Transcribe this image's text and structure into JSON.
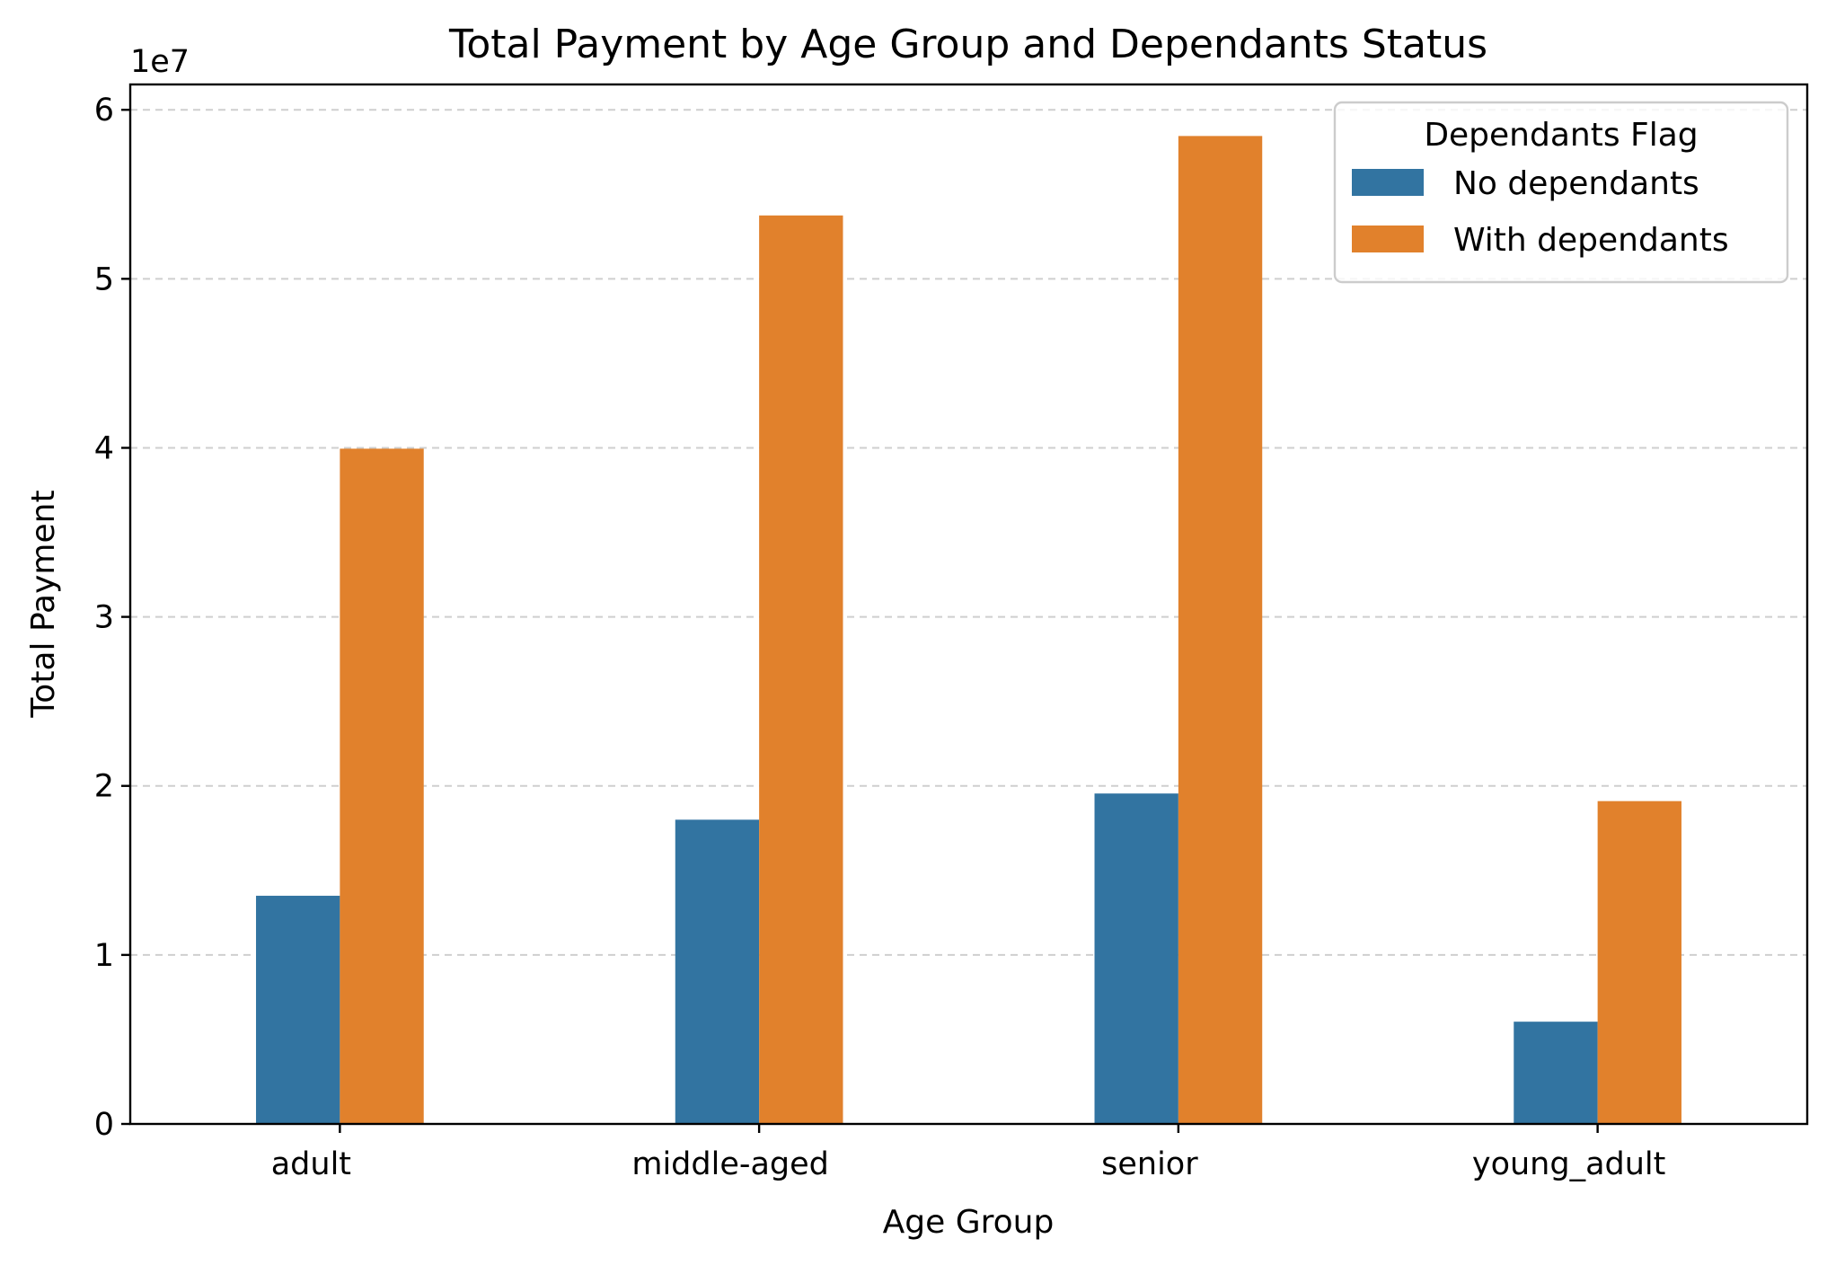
{
  "chart_data": {
    "type": "bar",
    "title": "Total Payment by Age Group and Dependants Status",
    "xlabel": "Age Group",
    "ylabel": "Total Payment",
    "offset_label": "1e7",
    "categories": [
      "adult",
      "middle-aged",
      "senior",
      "young_adult"
    ],
    "series": [
      {
        "name": "No dependants",
        "color": "#3274a1",
        "values": [
          13500000,
          18000000,
          19550000,
          6050000
        ]
      },
      {
        "name": "With dependants",
        "color": "#e1812c",
        "values": [
          39950000,
          53750000,
          58450000,
          19100000
        ]
      }
    ],
    "ylim": [
      0,
      61500000
    ],
    "yticks": [
      0,
      10000000,
      20000000,
      30000000,
      40000000,
      50000000,
      60000000
    ],
    "ytick_labels": [
      "0",
      "1",
      "2",
      "3",
      "4",
      "5",
      "6"
    ],
    "grid": "y-dashed",
    "legend": {
      "title": "Dependants Flag",
      "placement": "top-right"
    }
  }
}
